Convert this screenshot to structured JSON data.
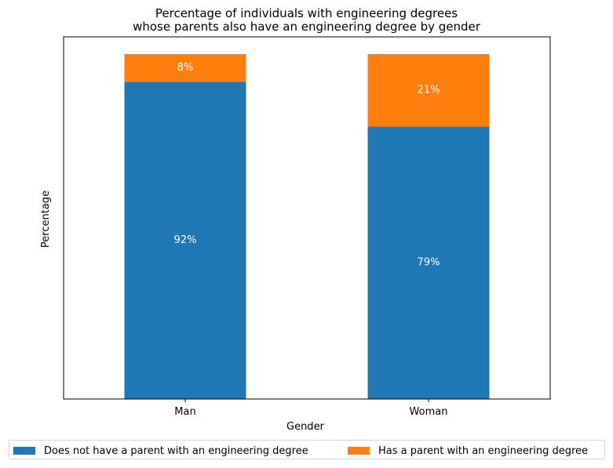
{
  "chart_data": {
    "type": "bar",
    "stacked": true,
    "title_lines": [
      "Percentage of individuals with engineering degrees",
      "whose parents also have an engineering degree by gender"
    ],
    "xlabel": "Gender",
    "ylabel": "Percentage",
    "categories": [
      "Man",
      "Woman"
    ],
    "series": [
      {
        "name": "Does not have a parent with an engineering degree",
        "values": [
          92,
          79
        ],
        "labels": [
          "92%",
          "79%"
        ],
        "color": "#1f77b4"
      },
      {
        "name": "Has a parent with an engineering degree",
        "values": [
          8,
          21
        ],
        "labels": [
          "8%",
          "21%"
        ],
        "color": "#ff7f0e"
      }
    ],
    "ylim": [
      0,
      105
    ],
    "y_ticks_visible": false,
    "grid": false,
    "legend_placement": "bottom-center",
    "label_color": "#ffffff"
  }
}
